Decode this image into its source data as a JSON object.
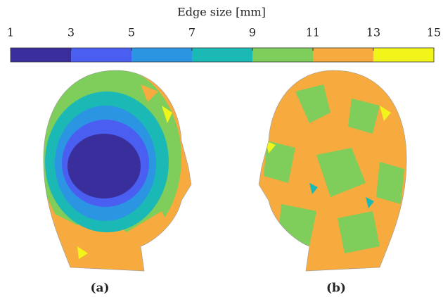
{
  "chart_data": {
    "type": "colorbar",
    "title": "Edge size [mm]",
    "xlim": [
      1,
      15
    ],
    "xticks": [
      1,
      3,
      5,
      7,
      9,
      11,
      13,
      15
    ],
    "bins": [
      1,
      3,
      5,
      7,
      9,
      11,
      13,
      15
    ],
    "colors": [
      "#3a2d9c",
      "#4a5ef2",
      "#2b95e3",
      "#1ab9b5",
      "#7fcd5b",
      "#f7ab3e",
      "#f2f51a"
    ]
  },
  "panel_labels": [
    "(a)",
    "(b)"
  ]
}
